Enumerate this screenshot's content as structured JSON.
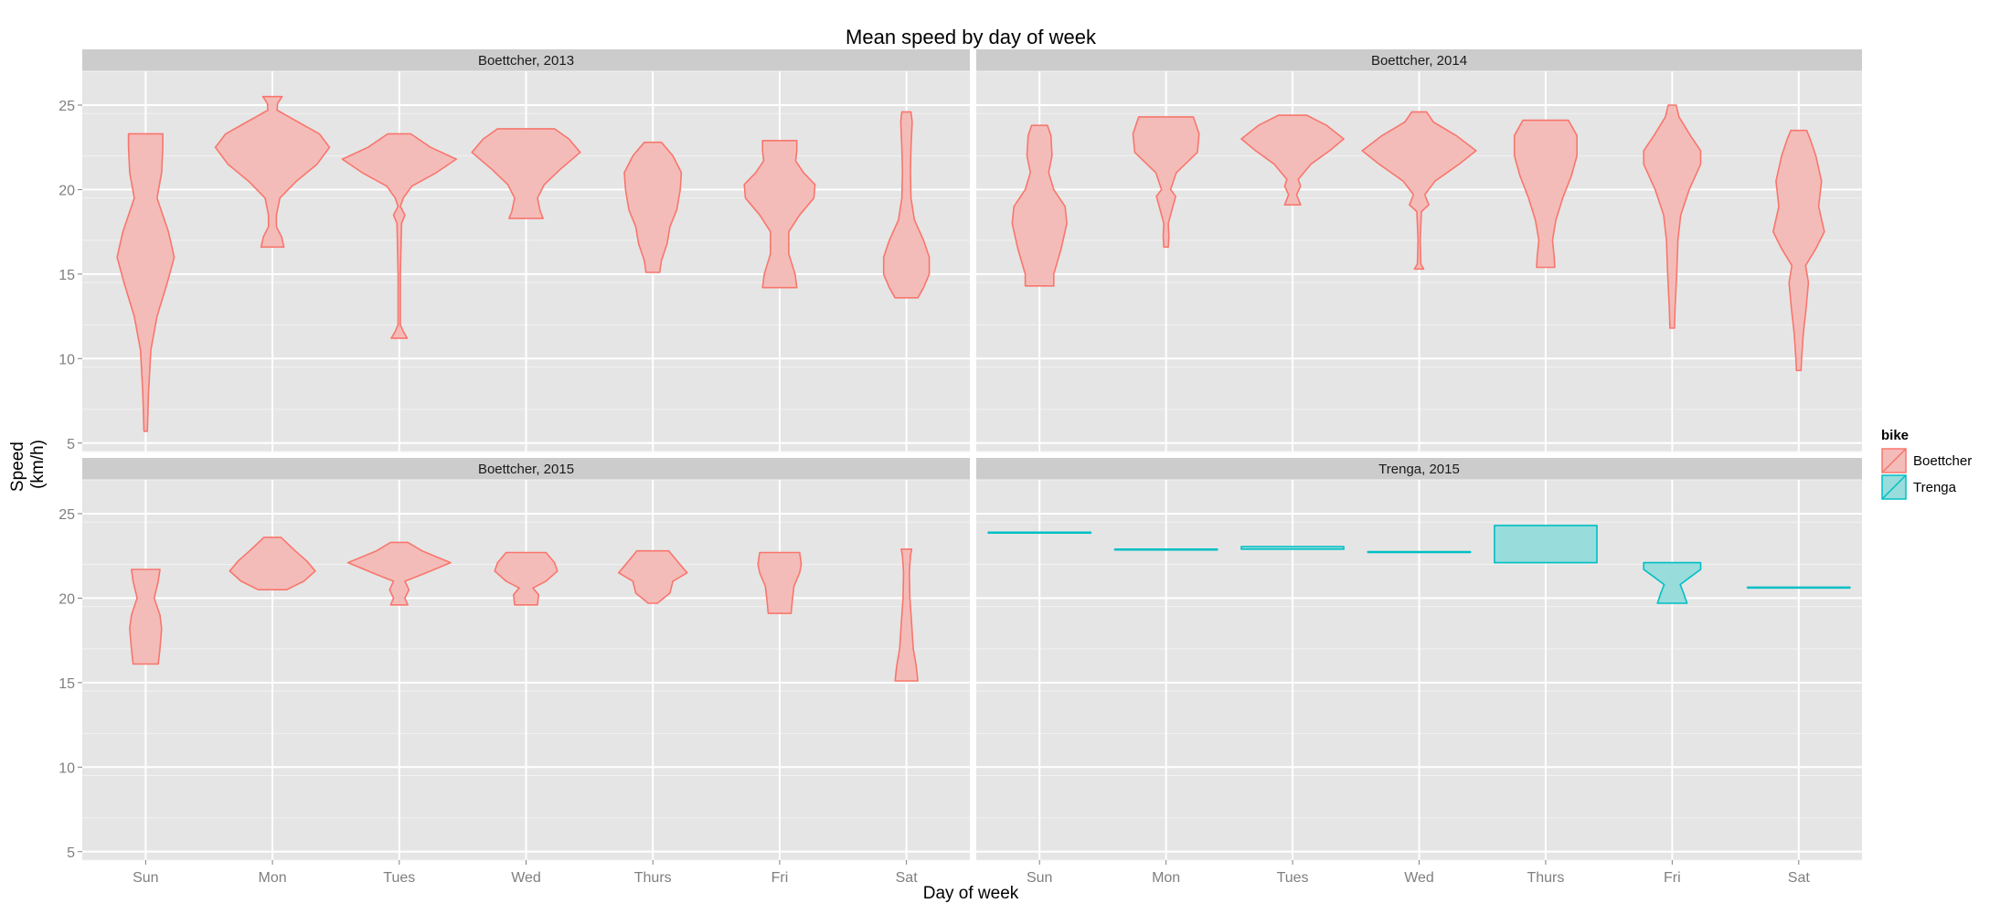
{
  "chart_data": {
    "type": "violin",
    "title": "Mean speed by day of week",
    "xlabel": "Day of week",
    "ylabel": [
      "Speed",
      "(km/h)"
    ],
    "categories": [
      "Sun",
      "Mon",
      "Tues",
      "Wed",
      "Thurs",
      "Fri",
      "Sat"
    ],
    "yticks": [
      5,
      10,
      15,
      20,
      25
    ],
    "ylim": [
      4.5,
      27
    ],
    "legend": {
      "title": "bike",
      "position": "right",
      "entries": [
        {
          "name": "Boettcher",
          "fill": "#f4bcb9",
          "stroke": "#f8766d"
        },
        {
          "name": "Trenga",
          "fill": "#98dcdc",
          "stroke": "#00bfc4"
        }
      ]
    },
    "panels": [
      {
        "strip": "Boettcher, 2013",
        "bike": "Boettcher",
        "violins": [
          {
            "day": "Sun",
            "profile": [
              [
                5.7,
                0.03
              ],
              [
                8,
                0.05
              ],
              [
                10.5,
                0.09
              ],
              [
                12.5,
                0.2
              ],
              [
                14.5,
                0.38
              ],
              [
                16,
                0.5
              ],
              [
                17.5,
                0.4
              ],
              [
                19.5,
                0.2
              ],
              [
                21,
                0.28
              ],
              [
                22.5,
                0.3
              ],
              [
                23.3,
                0.3
              ]
            ]
          },
          {
            "day": "Mon",
            "profile": [
              [
                16.6,
                0.2
              ],
              [
                17.2,
                0.16
              ],
              [
                17.8,
                0.07
              ],
              [
                18.5,
                0.07
              ],
              [
                19.5,
                0.13
              ],
              [
                20.5,
                0.42
              ],
              [
                21.5,
                0.78
              ],
              [
                22.5,
                1.0
              ],
              [
                23.3,
                0.82
              ],
              [
                24,
                0.45
              ],
              [
                24.7,
                0.08
              ],
              [
                25.1,
                0.09
              ],
              [
                25.5,
                0.17
              ]
            ]
          },
          {
            "day": "Tues",
            "profile": [
              [
                11.2,
                0.14
              ],
              [
                11.6,
                0.07
              ],
              [
                12,
                0.02
              ],
              [
                15,
                0.02
              ],
              [
                18,
                0.04
              ],
              [
                18.5,
                0.1
              ],
              [
                19,
                0.02
              ],
              [
                19.5,
                0.07
              ],
              [
                20.2,
                0.22
              ],
              [
                21,
                0.65
              ],
              [
                21.8,
                1.0
              ],
              [
                22.5,
                0.55
              ],
              [
                23.3,
                0.2
              ]
            ]
          },
          {
            "day": "Wed",
            "profile": [
              [
                18.3,
                0.3
              ],
              [
                18.7,
                0.25
              ],
              [
                19.5,
                0.2
              ],
              [
                20.3,
                0.32
              ],
              [
                21.2,
                0.6
              ],
              [
                22.2,
                0.95
              ],
              [
                23,
                0.75
              ],
              [
                23.6,
                0.5
              ]
            ]
          },
          {
            "day": "Thurs",
            "profile": [
              [
                15.1,
                0.12
              ],
              [
                15.8,
                0.15
              ],
              [
                16.8,
                0.25
              ],
              [
                17.8,
                0.3
              ],
              [
                18.8,
                0.42
              ],
              [
                20,
                0.48
              ],
              [
                21,
                0.5
              ],
              [
                22,
                0.35
              ],
              [
                22.8,
                0.15
              ]
            ]
          },
          {
            "day": "Fri",
            "profile": [
              [
                14.2,
                0.3
              ],
              [
                15,
                0.27
              ],
              [
                16.2,
                0.16
              ],
              [
                17.5,
                0.16
              ],
              [
                18.5,
                0.35
              ],
              [
                19.5,
                0.6
              ],
              [
                20.3,
                0.62
              ],
              [
                21,
                0.42
              ],
              [
                21.7,
                0.28
              ],
              [
                22.3,
                0.3
              ],
              [
                22.9,
                0.3
              ]
            ]
          },
          {
            "day": "Sat",
            "profile": [
              [
                13.6,
                0.2
              ],
              [
                14.2,
                0.3
              ],
              [
                15,
                0.4
              ],
              [
                16,
                0.4
              ],
              [
                17,
                0.3
              ],
              [
                18.2,
                0.14
              ],
              [
                19.5,
                0.08
              ],
              [
                21,
                0.07
              ],
              [
                22.5,
                0.08
              ],
              [
                24,
                0.1
              ],
              [
                24.6,
                0.08
              ]
            ]
          }
        ]
      },
      {
        "strip": "Boettcher, 2014",
        "bike": "Boettcher",
        "violins": [
          {
            "day": "Sun",
            "profile": [
              [
                14.3,
                0.25
              ],
              [
                15,
                0.25
              ],
              [
                16.5,
                0.38
              ],
              [
                18,
                0.48
              ],
              [
                19,
                0.45
              ],
              [
                20,
                0.25
              ],
              [
                21,
                0.16
              ],
              [
                22,
                0.22
              ],
              [
                23.2,
                0.2
              ],
              [
                23.8,
                0.14
              ]
            ]
          },
          {
            "day": "Mon",
            "profile": [
              [
                16.6,
                0.04
              ],
              [
                17.2,
                0.05
              ],
              [
                18,
                0.04
              ],
              [
                19,
                0.12
              ],
              [
                19.6,
                0.17
              ],
              [
                20,
                0.08
              ],
              [
                21,
                0.18
              ],
              [
                22.2,
                0.55
              ],
              [
                23.3,
                0.58
              ],
              [
                24.3,
                0.48
              ]
            ]
          },
          {
            "day": "Tues",
            "profile": [
              [
                19.1,
                0.14
              ],
              [
                19.7,
                0.07
              ],
              [
                20.2,
                0.14
              ],
              [
                20.6,
                0.1
              ],
              [
                21.5,
                0.32
              ],
              [
                22.3,
                0.65
              ],
              [
                23,
                0.9
              ],
              [
                23.8,
                0.6
              ],
              [
                24.4,
                0.25
              ]
            ]
          },
          {
            "day": "Wed",
            "profile": [
              [
                15.3,
                0.08
              ],
              [
                15.6,
                0.03
              ],
              [
                17,
                0.02
              ],
              [
                18.7,
                0.04
              ],
              [
                19.1,
                0.17
              ],
              [
                19.7,
                0.1
              ],
              [
                20.5,
                0.28
              ],
              [
                21.5,
                0.7
              ],
              [
                22.3,
                1.0
              ],
              [
                23.2,
                0.65
              ],
              [
                24,
                0.25
              ],
              [
                24.6,
                0.13
              ]
            ]
          },
          {
            "day": "Thurs",
            "profile": [
              [
                15.4,
                0.16
              ],
              [
                16,
                0.15
              ],
              [
                17,
                0.12
              ],
              [
                18.2,
                0.18
              ],
              [
                19.5,
                0.3
              ],
              [
                20.8,
                0.45
              ],
              [
                22,
                0.55
              ],
              [
                23.2,
                0.55
              ],
              [
                24.1,
                0.4
              ]
            ]
          },
          {
            "day": "Fri",
            "profile": [
              [
                11.8,
                0.04
              ],
              [
                13,
                0.05
              ],
              [
                15,
                0.08
              ],
              [
                17,
                0.1
              ],
              [
                18.5,
                0.15
              ],
              [
                20,
                0.3
              ],
              [
                21.5,
                0.5
              ],
              [
                22.3,
                0.5
              ],
              [
                23.2,
                0.32
              ],
              [
                24.3,
                0.12
              ],
              [
                25,
                0.07
              ]
            ]
          },
          {
            "day": "Sat",
            "profile": [
              [
                9.3,
                0.04
              ],
              [
                10,
                0.05
              ],
              [
                11.5,
                0.08
              ],
              [
                13,
                0.13
              ],
              [
                14.5,
                0.17
              ],
              [
                15.5,
                0.12
              ],
              [
                16.5,
                0.3
              ],
              [
                17.5,
                0.45
              ],
              [
                19,
                0.35
              ],
              [
                20.5,
                0.4
              ],
              [
                22,
                0.3
              ],
              [
                23,
                0.2
              ],
              [
                23.5,
                0.14
              ]
            ]
          }
        ]
      },
      {
        "strip": "Boettcher, 2015",
        "bike": "Boettcher",
        "violins": [
          {
            "day": "Sun",
            "profile": [
              [
                16.1,
                0.22
              ],
              [
                17,
                0.25
              ],
              [
                18.2,
                0.28
              ],
              [
                19,
                0.25
              ],
              [
                20,
                0.15
              ],
              [
                21,
                0.22
              ],
              [
                21.7,
                0.25
              ]
            ]
          },
          {
            "day": "Mon",
            "profile": [
              [
                20.5,
                0.25
              ],
              [
                21,
                0.55
              ],
              [
                21.6,
                0.75
              ],
              [
                22.2,
                0.6
              ],
              [
                22.8,
                0.4
              ],
              [
                23.6,
                0.15
              ]
            ]
          },
          {
            "day": "Tues",
            "profile": [
              [
                19.6,
                0.15
              ],
              [
                20,
                0.1
              ],
              [
                20.5,
                0.17
              ],
              [
                21,
                0.1
              ],
              [
                21.4,
                0.4
              ],
              [
                22.1,
                0.9
              ],
              [
                22.8,
                0.4
              ],
              [
                23.3,
                0.15
              ]
            ]
          },
          {
            "day": "Wed",
            "profile": [
              [
                19.6,
                0.2
              ],
              [
                20.2,
                0.22
              ],
              [
                20.6,
                0.12
              ],
              [
                21,
                0.35
              ],
              [
                21.6,
                0.55
              ],
              [
                22.1,
                0.5
              ],
              [
                22.7,
                0.35
              ]
            ]
          },
          {
            "day": "Thurs",
            "profile": [
              [
                19.7,
                0.08
              ],
              [
                20.3,
                0.3
              ],
              [
                21,
                0.35
              ],
              [
                21.5,
                0.6
              ],
              [
                22.1,
                0.45
              ],
              [
                22.8,
                0.28
              ]
            ]
          },
          {
            "day": "Fri",
            "profile": [
              [
                19.1,
                0.2
              ],
              [
                19.8,
                0.22
              ],
              [
                20.7,
                0.25
              ],
              [
                21.5,
                0.35
              ],
              [
                22,
                0.38
              ],
              [
                22.7,
                0.35
              ]
            ]
          },
          {
            "day": "Sat",
            "profile": [
              [
                15.1,
                0.2
              ],
              [
                16,
                0.17
              ],
              [
                17,
                0.12
              ],
              [
                18.5,
                0.09
              ],
              [
                20,
                0.06
              ],
              [
                21.5,
                0.05
              ],
              [
                22.5,
                0.07
              ],
              [
                22.9,
                0.09
              ]
            ]
          }
        ]
      },
      {
        "strip": "Trenga, 2015",
        "bike": "Trenga",
        "violins": [
          {
            "day": "Sun",
            "profile": [
              [
                23.85,
                0.9
              ],
              [
                23.9,
                0.9
              ]
            ]
          },
          {
            "day": "Mon",
            "profile": [
              [
                22.85,
                0.9
              ],
              [
                22.9,
                0.9
              ]
            ]
          },
          {
            "day": "Tues",
            "profile": [
              [
                22.9,
                0.9
              ],
              [
                23.05,
                0.9
              ]
            ]
          },
          {
            "day": "Wed",
            "profile": [
              [
                22.7,
                0.9
              ],
              [
                22.75,
                0.9
              ]
            ]
          },
          {
            "day": "Thurs",
            "profile": [
              [
                22.1,
                0.9
              ],
              [
                24.3,
                0.9
              ]
            ]
          },
          {
            "day": "Fri",
            "profile": [
              [
                19.7,
                0.26
              ],
              [
                20.3,
                0.2
              ],
              [
                20.8,
                0.14
              ],
              [
                21.2,
                0.3
              ],
              [
                21.7,
                0.5
              ],
              [
                22.1,
                0.5
              ]
            ]
          },
          {
            "day": "Sat",
            "profile": [
              [
                20.6,
                0.9
              ],
              [
                20.65,
                0.9
              ]
            ]
          }
        ]
      }
    ]
  }
}
